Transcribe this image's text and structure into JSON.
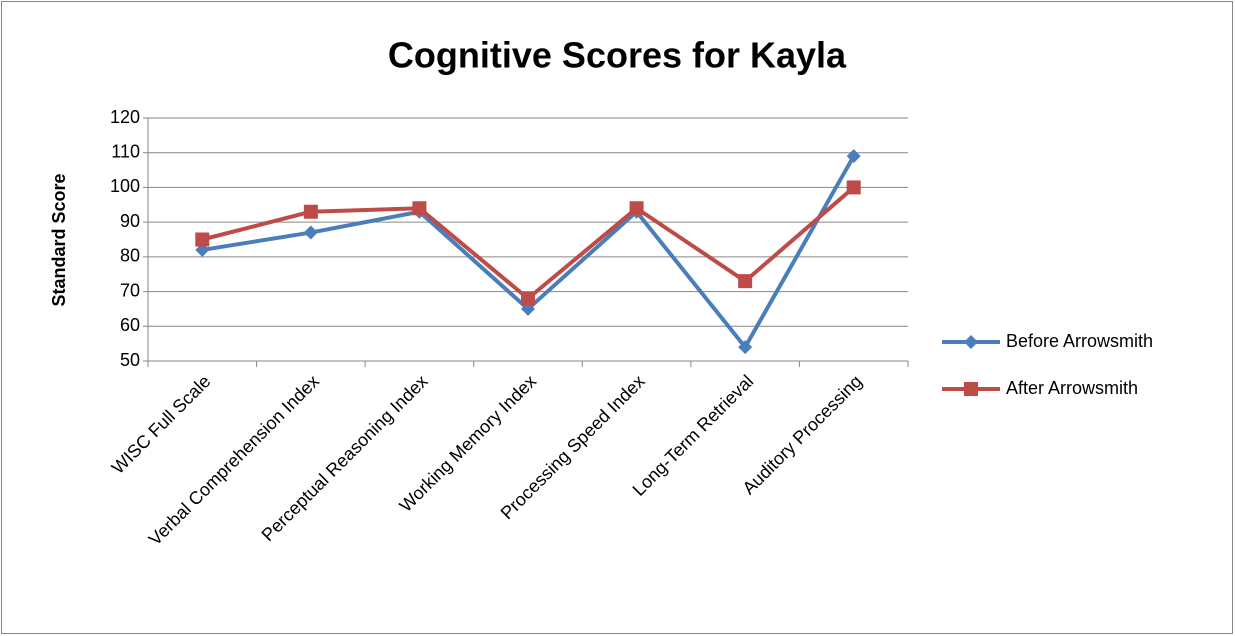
{
  "chart_data": {
    "type": "line",
    "title": "Cognitive Scores for Kayla",
    "y_label": "Standard Score",
    "categories": [
      "WISC Full Scale",
      "Verbal Comprehension Index",
      "Perceptual Reasoning Index",
      "Working Memory Index",
      "Processing Speed Index",
      "Long-Term Retrieval",
      "Auditory Processing"
    ],
    "series": [
      {
        "name": "Before Arrowsmith",
        "color": "#4a7ebb",
        "marker": "diamond",
        "values": [
          82,
          87,
          93,
          65,
          93,
          54,
          109
        ]
      },
      {
        "name": "After Arrowsmith",
        "color": "#be4b48",
        "marker": "square",
        "values": [
          85,
          93,
          94,
          68,
          94,
          73,
          100
        ]
      }
    ],
    "ylim": [
      50,
      120
    ],
    "yticks": [
      50,
      60,
      70,
      80,
      90,
      100,
      110,
      120
    ],
    "grid": true,
    "legend": "right"
  }
}
